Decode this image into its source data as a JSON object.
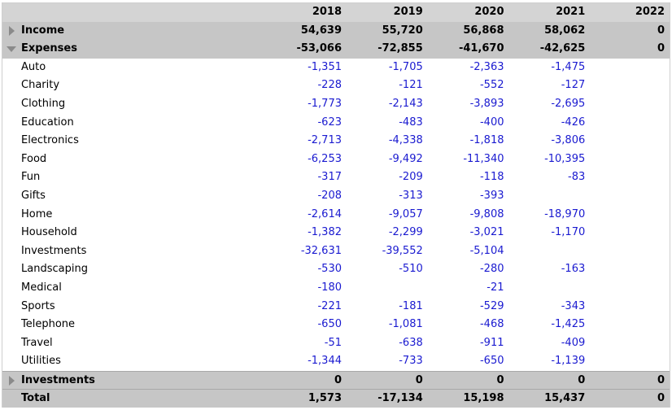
{
  "columns": [
    "2018",
    "2019",
    "2020",
    "2021",
    "2022"
  ],
  "income": {
    "label": "Income",
    "values": [
      "54,639",
      "55,720",
      "56,868",
      "58,062",
      "0"
    ]
  },
  "expenses": {
    "label": "Expenses",
    "values": [
      "-53,066",
      "-72,855",
      "-41,670",
      "-42,625",
      "0"
    ],
    "categories": [
      {
        "label": "Auto",
        "values": [
          "-1,351",
          "-1,705",
          "-2,363",
          "-1,475",
          ""
        ]
      },
      {
        "label": "Charity",
        "values": [
          "-228",
          "-121",
          "-552",
          "-127",
          ""
        ]
      },
      {
        "label": "Clothing",
        "values": [
          "-1,773",
          "-2,143",
          "-3,893",
          "-2,695",
          ""
        ]
      },
      {
        "label": "Education",
        "values": [
          "-623",
          "-483",
          "-400",
          "-426",
          ""
        ]
      },
      {
        "label": "Electronics",
        "values": [
          "-2,713",
          "-4,338",
          "-1,818",
          "-3,806",
          ""
        ]
      },
      {
        "label": "Food",
        "values": [
          "-6,253",
          "-9,492",
          "-11,340",
          "-10,395",
          ""
        ]
      },
      {
        "label": "Fun",
        "values": [
          "-317",
          "-209",
          "-118",
          "-83",
          ""
        ]
      },
      {
        "label": "Gifts",
        "values": [
          "-208",
          "-313",
          "-393",
          "",
          ""
        ]
      },
      {
        "label": "Home",
        "values": [
          "-2,614",
          "-9,057",
          "-9,808",
          "-18,970",
          ""
        ]
      },
      {
        "label": "Household",
        "values": [
          "-1,382",
          "-2,299",
          "-3,021",
          "-1,170",
          ""
        ]
      },
      {
        "label": "Investments",
        "values": [
          "-32,631",
          "-39,552",
          "-5,104",
          "",
          ""
        ]
      },
      {
        "label": "Landscaping",
        "values": [
          "-530",
          "-510",
          "-280",
          "-163",
          ""
        ]
      },
      {
        "label": "Medical",
        "values": [
          "-180",
          "",
          "-21",
          "",
          ""
        ]
      },
      {
        "label": "Sports",
        "values": [
          "-221",
          "-181",
          "-529",
          "-343",
          ""
        ]
      },
      {
        "label": "Telephone",
        "values": [
          "-650",
          "-1,081",
          "-468",
          "-1,425",
          ""
        ]
      },
      {
        "label": "Travel",
        "values": [
          "-51",
          "-638",
          "-911",
          "-409",
          ""
        ]
      },
      {
        "label": "Utilities",
        "values": [
          "-1,344",
          "-733",
          "-650",
          "-1,139",
          ""
        ]
      }
    ]
  },
  "investments": {
    "label": "Investments",
    "values": [
      "0",
      "0",
      "0",
      "0",
      "0"
    ]
  },
  "total": {
    "label": "Total",
    "values": [
      "1,573",
      "-17,134",
      "15,198",
      "15,437",
      "0"
    ]
  },
  "icons": {
    "income_toggle": "expand-triangle-icon",
    "expenses_toggle": "collapse-triangle-icon",
    "investments_toggle": "expand-triangle-icon"
  },
  "colors": {
    "negative_text": "#1a1ad0",
    "group_row_bg": "#c6c6c6",
    "header_bg": "#d4d4d4"
  }
}
